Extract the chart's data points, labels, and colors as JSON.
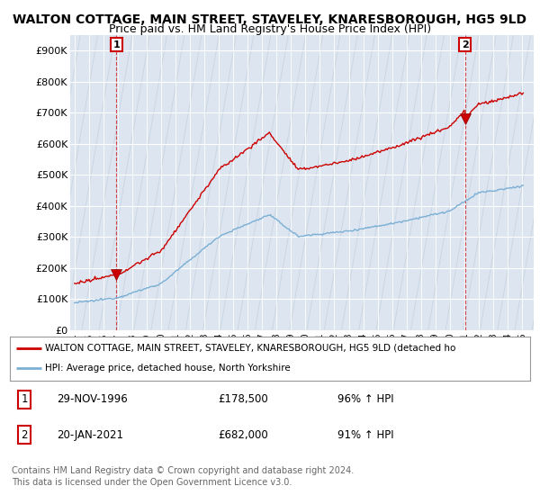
{
  "title": "WALTON COTTAGE, MAIN STREET, STAVELEY, KNARESBOROUGH, HG5 9LD",
  "subtitle": "Price paid vs. HM Land Registry's House Price Index (HPI)",
  "title_fontsize": 10,
  "subtitle_fontsize": 9,
  "ylim": [
    0,
    950000
  ],
  "yticks": [
    0,
    100000,
    200000,
    300000,
    400000,
    500000,
    600000,
    700000,
    800000,
    900000
  ],
  "ytick_labels": [
    "£0",
    "£100K",
    "£200K",
    "£300K",
    "£400K",
    "£500K",
    "£600K",
    "£700K",
    "£800K",
    "£900K"
  ],
  "background_color": "#ffffff",
  "plot_bg_color": "#dde6f0",
  "hatch_color": "#c8d4e4",
  "red_color": "#cc0000",
  "blue_color": "#7bafd4",
  "sale1_year": 1996.91,
  "sale1_price": 178500,
  "sale2_year": 2021.05,
  "sale2_price": 682000,
  "legend_line1": "WALTON COTTAGE, MAIN STREET, STAVELEY, KNARESBOROUGH, HG5 9LD (detached ho",
  "legend_line2": "HPI: Average price, detached house, North Yorkshire",
  "table_row1_num": "1",
  "table_row1_date": "29-NOV-1996",
  "table_row1_price": "£178,500",
  "table_row1_hpi": "96% ↑ HPI",
  "table_row2_num": "2",
  "table_row2_date": "20-JAN-2021",
  "table_row2_price": "£682,000",
  "table_row2_hpi": "91% ↑ HPI",
  "footer1": "Contains HM Land Registry data © Crown copyright and database right 2024.",
  "footer2": "This data is licensed under the Open Government Licence v3.0."
}
